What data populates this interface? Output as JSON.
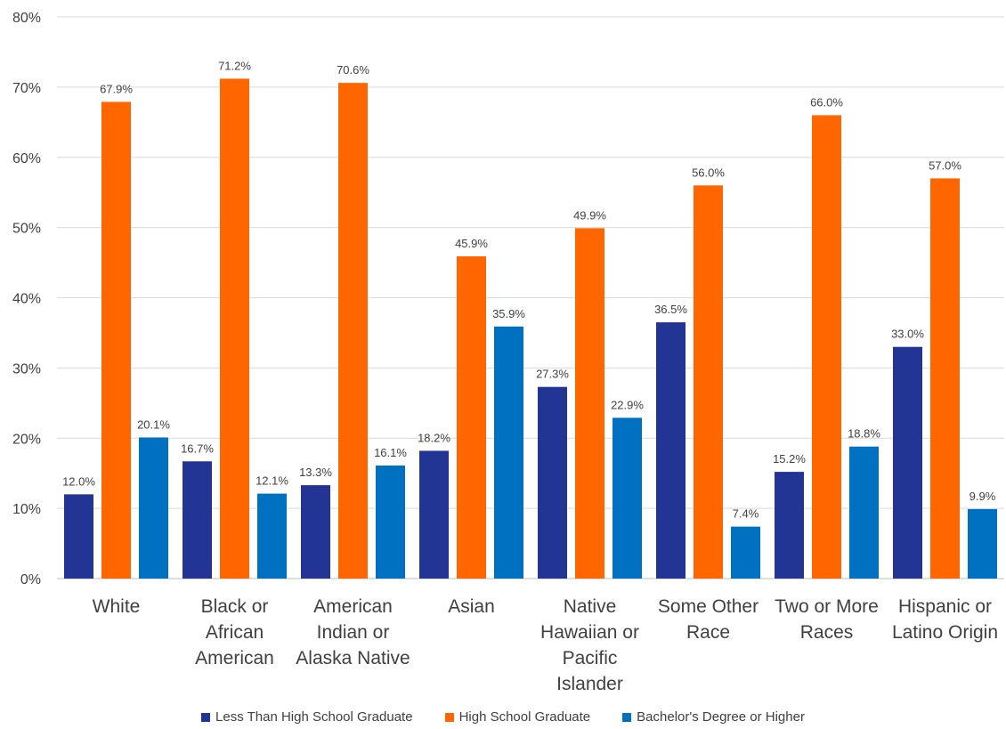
{
  "chart_data": {
    "type": "bar",
    "categories": [
      [
        "White"
      ],
      [
        "Black or",
        "African",
        "American"
      ],
      [
        "American",
        "Indian or",
        "Alaska Native"
      ],
      [
        "Asian"
      ],
      [
        "Native",
        "Hawaiian or",
        "Pacific",
        "Islander"
      ],
      [
        "Some Other",
        "Race"
      ],
      [
        "Two or More",
        "Races"
      ],
      [
        "Hispanic or",
        "Latino Origin"
      ]
    ],
    "series": [
      {
        "name": "Less Than High School Graduate",
        "color": "#233594",
        "values": [
          12.0,
          16.7,
          13.3,
          18.2,
          27.3,
          36.5,
          15.2,
          33.0
        ],
        "labels": [
          "12.0%",
          "16.7%",
          "13.3%",
          "18.2%",
          "27.3%",
          "36.5%",
          "15.2%",
          "33.0%"
        ]
      },
      {
        "name": "High School Graduate",
        "color": "#ff6600",
        "values": [
          67.9,
          71.2,
          70.6,
          45.9,
          49.9,
          56.0,
          66.0,
          57.0
        ],
        "labels": [
          "67.9%",
          "71.2%",
          "70.6%",
          "45.9%",
          "49.9%",
          "56.0%",
          "66.0%",
          "57.0%"
        ]
      },
      {
        "name": "Bachelor's Degree or Higher",
        "color": "#0070c0",
        "values": [
          20.1,
          12.1,
          16.1,
          35.9,
          22.9,
          7.4,
          18.8,
          9.9
        ],
        "labels": [
          "20.1%",
          "12.1%",
          "16.1%",
          "35.9%",
          "22.9%",
          "7.4%",
          "18.8%",
          "9.9%"
        ]
      }
    ],
    "yTickLabels": [
      "0%",
      "10%",
      "20%",
      "30%",
      "40%",
      "50%",
      "60%",
      "70%",
      "80%"
    ],
    "ylim": [
      0,
      80
    ],
    "ystep": 10,
    "grid": true,
    "legend_position": "bottom"
  },
  "legend": {
    "items": [
      {
        "label": "Less Than High School Graduate",
        "color": "#233594"
      },
      {
        "label": "High School Graduate",
        "color": "#ff6600"
      },
      {
        "label": "Bachelor's Degree or Higher",
        "color": "#0070c0"
      }
    ]
  }
}
